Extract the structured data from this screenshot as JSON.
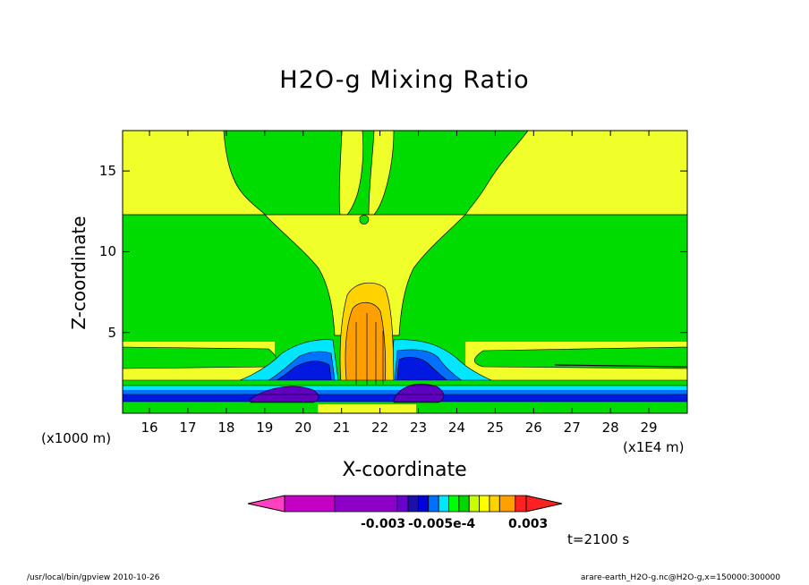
{
  "chart_data": {
    "type": "heatmap",
    "title": "H2O-g Mixing Ratio",
    "xlabel": "X-coordinate",
    "ylabel": "Z-coordinate",
    "x_multiplier": "(x1E4 m)",
    "y_multiplier": "(x1000 m)",
    "xlim": [
      15.3,
      30
    ],
    "ylim": [
      0,
      17.5
    ],
    "x_ticks": [
      "16",
      "17",
      "18",
      "19",
      "20",
      "21",
      "22",
      "23",
      "24",
      "25",
      "26",
      "27",
      "28",
      "29"
    ],
    "y_ticks": [
      "5",
      "10",
      "15"
    ],
    "colorbar_labels": [
      "-0.003",
      "-0.005e-4",
      "0.003"
    ],
    "colorbar_colors": [
      "#c400c4",
      "#8c00c8",
      "#6a00d0",
      "#1a10a8",
      "#0000dc",
      "#0070ff",
      "#00e6ff",
      "#00ff00",
      "#00d800",
      "#c8ff00",
      "#ffff00",
      "#ffd200",
      "#ffa000",
      "#ff2020"
    ],
    "background_color": "#00dc00",
    "regions": [
      {
        "level": "yellow",
        "color": "#f0ff2a",
        "desc": "upper-left plateau z 12.5-17.5"
      },
      {
        "level": "yellow",
        "color": "#f0ff2a",
        "desc": "upper-right plateau z 12.5-17.5"
      },
      {
        "level": "yellow",
        "color": "#f0ff2a",
        "desc": "central anvil and column"
      },
      {
        "level": "orange",
        "color": "#ffaa00",
        "desc": "central core"
      },
      {
        "level": "blue",
        "color": "#0018e0",
        "desc": "low-level moist layers"
      },
      {
        "level": "purple",
        "color": "#6000c0",
        "desc": "near-surface minima"
      }
    ]
  },
  "annotations": {
    "time": "t=2100 s",
    "path": "/usr/local/bin/gpview  2010-10-26",
    "file": "arare-earth_H2O-g.nc@H2O-g,x=150000:300000"
  }
}
